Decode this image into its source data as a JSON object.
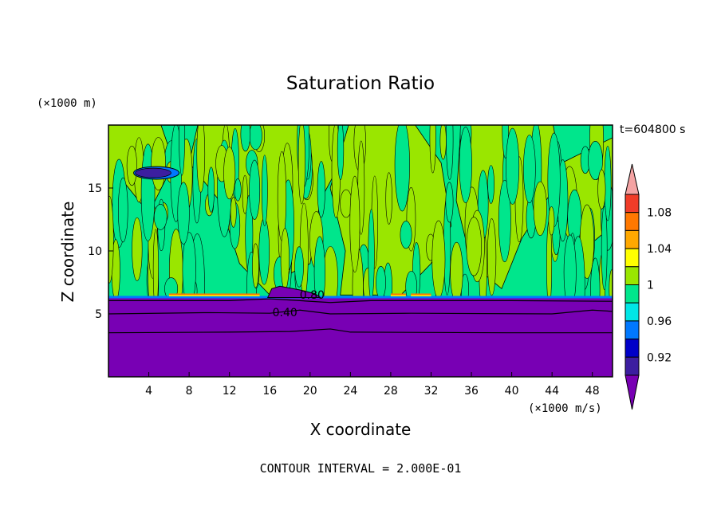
{
  "chart_data": {
    "type": "heatmap",
    "title": "Saturation Ratio",
    "xlabel": "X coordinate",
    "ylabel": "Z coordinate",
    "x_unit": "(×1000 m/s)",
    "y_unit": "(×1000 m)",
    "time_label": "t=604800 s",
    "footer": "CONTOUR INTERVAL = 2.000E-01",
    "xlim": [
      0,
      50
    ],
    "ylim": [
      0,
      20
    ],
    "x_ticks": [
      4,
      8,
      12,
      16,
      20,
      24,
      28,
      32,
      36,
      40,
      44,
      48
    ],
    "y_ticks": [
      5,
      10,
      15
    ],
    "contour_labels": [
      {
        "text": "0.80",
        "x": 20.2,
        "y": 6.2
      },
      {
        "text": "0.40",
        "x": 17.5,
        "y": 4.8
      }
    ],
    "colorbar": {
      "tick_labels": [
        "1.08",
        "1.04",
        "1",
        "0.96",
        "0.92"
      ],
      "bins": [
        {
          "range": ">1.10",
          "color": "#f4a3a3"
        },
        {
          "range": "1.08-1.10",
          "color": "#f03c28"
        },
        {
          "range": "1.06-1.08",
          "color": "#ff7800"
        },
        {
          "range": "1.04-1.06",
          "color": "#ffa800"
        },
        {
          "range": "1.02-1.04",
          "color": "#ffff00"
        },
        {
          "range": "1.00-1.02",
          "color": "#9ae600"
        },
        {
          "range": "0.98-1.00",
          "color": "#00e68c"
        },
        {
          "range": "0.96-0.98",
          "color": "#00e6e6"
        },
        {
          "range": "0.94-0.96",
          "color": "#0078ff"
        },
        {
          "range": "0.92-0.94",
          "color": "#0000c8"
        },
        {
          "range": "0.90-0.92",
          "color": "#3c1ea0"
        },
        {
          "range": "<0.90",
          "color": "#7800b4"
        }
      ]
    },
    "regions": {
      "upper_background": {
        "level": "0.98-1.00",
        "color": "#00e68c",
        "z_range": [
          6.3,
          20
        ]
      },
      "upper_patches": {
        "level": "1.00-1.02",
        "color": "#9ae600"
      },
      "lower_layer": {
        "level": "<0.90",
        "color": "#7800b4",
        "z_range": [
          0,
          6.3
        ]
      },
      "dry_patch": {
        "level": "<0.90",
        "x": [
          2.5,
          7.0
        ],
        "z": [
          15.7,
          16.7
        ]
      }
    }
  }
}
